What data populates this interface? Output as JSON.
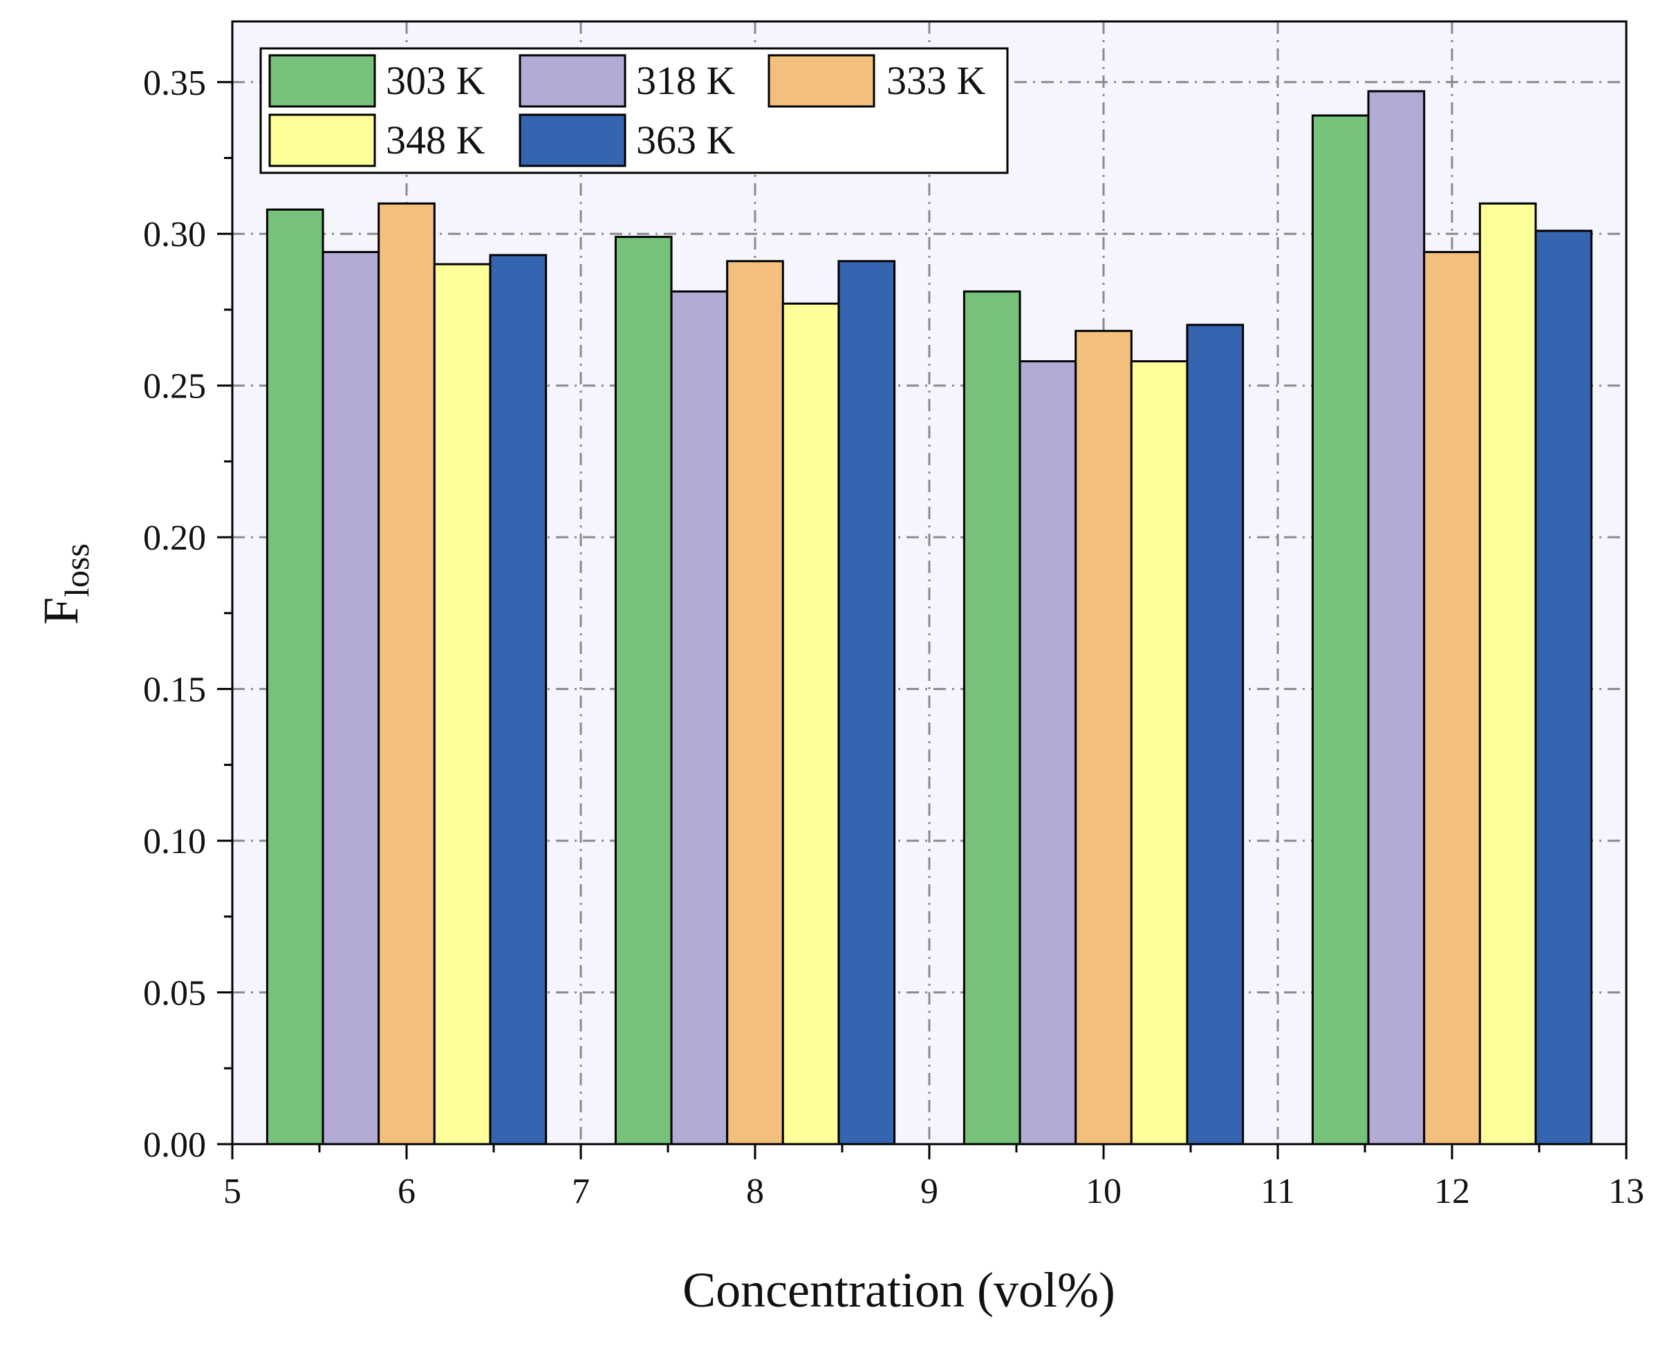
{
  "chart_data": {
    "type": "bar",
    "title": "",
    "xlabel": "Concentration (vol%)",
    "ylabel_main": "F",
    "ylabel_sub": "loss",
    "xlim": [
      5,
      13
    ],
    "ylim": [
      0,
      0.37
    ],
    "x_ticks": [
      5,
      6,
      7,
      8,
      9,
      10,
      11,
      12,
      13
    ],
    "x_tick_labels": [
      "5",
      "6",
      "7",
      "8",
      "9",
      "10",
      "11",
      "12",
      "13"
    ],
    "y_ticks": [
      0,
      0.05,
      0.1,
      0.15,
      0.2,
      0.25,
      0.3,
      0.35
    ],
    "y_tick_labels": [
      "0.00",
      "0.05",
      "0.10",
      "0.15",
      "0.20",
      "0.25",
      "0.30",
      "0.35"
    ],
    "grid": true,
    "legend_position": "top-left",
    "categories": [
      6,
      8,
      10,
      12
    ],
    "bar_width": 0.32,
    "series": [
      {
        "name": "303 K",
        "color": "#77c27a",
        "values": [
          0.308,
          0.299,
          0.281,
          0.339
        ]
      },
      {
        "name": "318 K",
        "color": "#b3aad6",
        "values": [
          0.294,
          0.281,
          0.258,
          0.347
        ]
      },
      {
        "name": "333 K",
        "color": "#f2c07c",
        "values": [
          0.31,
          0.291,
          0.268,
          0.294
        ]
      },
      {
        "name": "348 K",
        "color": "#ffff99",
        "values": [
          0.29,
          0.277,
          0.258,
          0.31
        ]
      },
      {
        "name": "363 K",
        "color": "#3565b0",
        "values": [
          0.293,
          0.291,
          0.27,
          0.301
        ]
      }
    ]
  },
  "colors": {
    "plot_background": "#f5f6fd",
    "grid": "#8a8a8a",
    "axis": "#000000"
  }
}
